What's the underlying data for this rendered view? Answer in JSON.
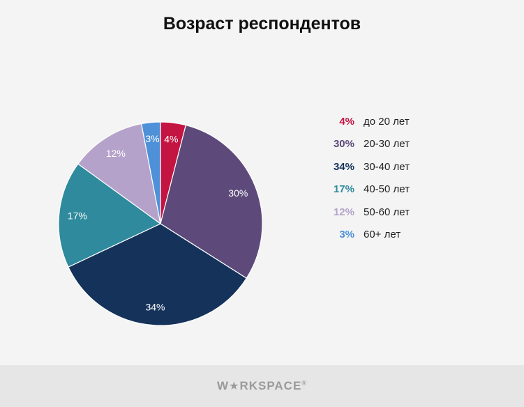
{
  "title": "Возраст респондентов",
  "chart_data": {
    "type": "pie",
    "title": "Возраст респондентов",
    "slices": [
      {
        "label": "до 20 лет",
        "value": 4,
        "value_label": "4%",
        "color": "#c41442"
      },
      {
        "label": "20-30 лет",
        "value": 30,
        "value_label": "30%",
        "color": "#5d4a7a"
      },
      {
        "label": "30-40 лет",
        "value": 34,
        "value_label": "34%",
        "color": "#15335a"
      },
      {
        "label": "40-50 лет",
        "value": 17,
        "value_label": "17%",
        "color": "#2e8a9c"
      },
      {
        "label": "50-60 лет",
        "value": 12,
        "value_label": "12%",
        "color": "#b5a2ca"
      },
      {
        "label": "60+ лет",
        "value": 3,
        "value_label": "3%",
        "color": "#4e91d8"
      }
    ],
    "legend_position": "right",
    "start_angle": "top, clockwise"
  },
  "footer": {
    "brand_start": "W",
    "brand_star": "★",
    "brand_end": "RKSPACE",
    "brand_mark": "®"
  }
}
